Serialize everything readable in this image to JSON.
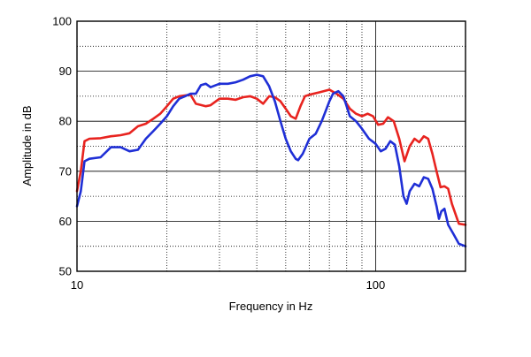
{
  "chart_data": {
    "type": "line",
    "title": "",
    "xlabel": "Frequency in Hz",
    "ylabel": "Amplitude in dB",
    "x_scale": "log",
    "xlim": [
      10,
      200
    ],
    "ylim": [
      50,
      100
    ],
    "x_tick_labels": [
      {
        "value": 10,
        "label": "10"
      },
      {
        "value": 100,
        "label": "100"
      }
    ],
    "y_ticks": [
      50,
      60,
      70,
      80,
      90,
      100
    ],
    "grid": true,
    "legend": "none",
    "colors": {
      "red": "#e8231f",
      "blue": "#1f2fd6"
    },
    "series": [
      {
        "color": "#e8231f",
        "points": [
          [
            10,
            66
          ],
          [
            10.3,
            70
          ],
          [
            10.6,
            76
          ],
          [
            11,
            76.5
          ],
          [
            12,
            76.6
          ],
          [
            13,
            77
          ],
          [
            14,
            77.2
          ],
          [
            15,
            77.6
          ],
          [
            16,
            79
          ],
          [
            17,
            79.5
          ],
          [
            18,
            80.5
          ],
          [
            19,
            81.5
          ],
          [
            20,
            83
          ],
          [
            21,
            84.5
          ],
          [
            22,
            85
          ],
          [
            24,
            85.3
          ],
          [
            25,
            83.5
          ],
          [
            27,
            83
          ],
          [
            28,
            83.2
          ],
          [
            30,
            84.5
          ],
          [
            32,
            84.5
          ],
          [
            34,
            84.3
          ],
          [
            36,
            84.8
          ],
          [
            38,
            85
          ],
          [
            40,
            84.5
          ],
          [
            42,
            83.5
          ],
          [
            44,
            85
          ],
          [
            46,
            84.8
          ],
          [
            48,
            84
          ],
          [
            50,
            82.5
          ],
          [
            52,
            81
          ],
          [
            54,
            80.5
          ],
          [
            56,
            83
          ],
          [
            58,
            85
          ],
          [
            60,
            85.3
          ],
          [
            65,
            85.8
          ],
          [
            70,
            86.3
          ],
          [
            74,
            85.5
          ],
          [
            78,
            84.5
          ],
          [
            82,
            82.5
          ],
          [
            86,
            81.5
          ],
          [
            90,
            81
          ],
          [
            94,
            81.5
          ],
          [
            98,
            81
          ],
          [
            102,
            79.3
          ],
          [
            106,
            79.5
          ],
          [
            110,
            80.8
          ],
          [
            115,
            80
          ],
          [
            120,
            76.5
          ],
          [
            125,
            72
          ],
          [
            130,
            75
          ],
          [
            135,
            76.5
          ],
          [
            140,
            75.8
          ],
          [
            145,
            77
          ],
          [
            150,
            76.5
          ],
          [
            155,
            73.5
          ],
          [
            160,
            70
          ],
          [
            165,
            66.8
          ],
          [
            170,
            67
          ],
          [
            175,
            66.5
          ],
          [
            180,
            63.5
          ],
          [
            190,
            59.5
          ],
          [
            200,
            59.3
          ]
        ]
      },
      {
        "color": "#1f2fd6",
        "points": [
          [
            10,
            63
          ],
          [
            10.3,
            66
          ],
          [
            10.6,
            72
          ],
          [
            11,
            72.5
          ],
          [
            12,
            72.8
          ],
          [
            13,
            74.8
          ],
          [
            14,
            74.8
          ],
          [
            15,
            74
          ],
          [
            16,
            74.3
          ],
          [
            17,
            76.5
          ],
          [
            18,
            78
          ],
          [
            19,
            79.5
          ],
          [
            20,
            81
          ],
          [
            21,
            83
          ],
          [
            22,
            84.5
          ],
          [
            23,
            85
          ],
          [
            24,
            85.5
          ],
          [
            25,
            85.5
          ],
          [
            26,
            87.2
          ],
          [
            27,
            87.5
          ],
          [
            28,
            86.8
          ],
          [
            30,
            87.5
          ],
          [
            32,
            87.5
          ],
          [
            34,
            87.8
          ],
          [
            36,
            88.3
          ],
          [
            38,
            89
          ],
          [
            40,
            89.3
          ],
          [
            42,
            89
          ],
          [
            44,
            87
          ],
          [
            46,
            84
          ],
          [
            48,
            80
          ],
          [
            50,
            76.5
          ],
          [
            52,
            74
          ],
          [
            54,
            72.5
          ],
          [
            55,
            72.2
          ],
          [
            57,
            73.5
          ],
          [
            60,
            76.5
          ],
          [
            63,
            77.5
          ],
          [
            66,
            80
          ],
          [
            68,
            82
          ],
          [
            70,
            84
          ],
          [
            72,
            85.5
          ],
          [
            75,
            86
          ],
          [
            78,
            85
          ],
          [
            82,
            81
          ],
          [
            86,
            80
          ],
          [
            90,
            78.5
          ],
          [
            95,
            76.5
          ],
          [
            100,
            75.5
          ],
          [
            104,
            74
          ],
          [
            108,
            74.5
          ],
          [
            112,
            76
          ],
          [
            116,
            75.3
          ],
          [
            120,
            71
          ],
          [
            124,
            65
          ],
          [
            127,
            63.5
          ],
          [
            130,
            66
          ],
          [
            135,
            67.5
          ],
          [
            140,
            67
          ],
          [
            145,
            68.8
          ],
          [
            150,
            68.5
          ],
          [
            155,
            66.5
          ],
          [
            160,
            63
          ],
          [
            163,
            60.5
          ],
          [
            166,
            62
          ],
          [
            170,
            62.5
          ],
          [
            175,
            59.3
          ],
          [
            182,
            57.5
          ],
          [
            190,
            55.5
          ],
          [
            200,
            55
          ]
        ]
      }
    ]
  }
}
